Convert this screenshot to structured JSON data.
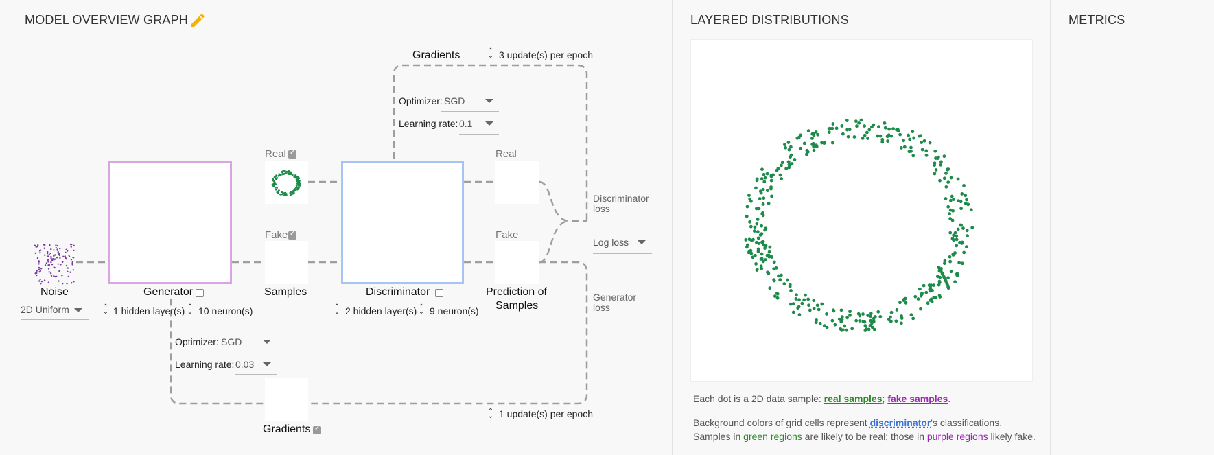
{
  "sections": {
    "model_overview": "MODEL OVERVIEW GRAPH",
    "layered": "LAYERED DISTRIBUTIONS",
    "metrics": "METRICS"
  },
  "accent": {
    "generator": "#d9a4e2",
    "discriminator": "#a8c4f5",
    "real_dot": "#1e8b4a",
    "fake_dot": "#7b3aa0",
    "edit_icon": "#f5b301"
  },
  "noise": {
    "label": "Noise",
    "distribution": "2D Uniform"
  },
  "generator": {
    "label": "Generator",
    "hidden_layers": "1 hidden layer(s)",
    "neurons": "10 neuron(s)",
    "optimizer_label": "Optimizer:",
    "optimizer": "SGD",
    "lr_label": "Learning rate:",
    "lr": "0.03"
  },
  "discriminator": {
    "label": "Discriminator",
    "hidden_layers": "2 hidden layer(s)",
    "neurons": "9 neuron(s)",
    "optimizer_label": "Optimizer:",
    "optimizer": "SGD",
    "lr_label": "Learning rate:",
    "lr": "0.1"
  },
  "real_in": "Real",
  "fake_in": "Fake",
  "samples": "Samples",
  "real_out": "Real",
  "fake_out": "Fake",
  "prediction": [
    "Prediction of",
    "Samples"
  ],
  "disc_loss": [
    "Discriminator",
    "loss"
  ],
  "gen_loss": [
    "Generator",
    "loss"
  ],
  "loss_fn": "Log loss",
  "gradients_top": "Gradients",
  "gradients_bottom": "Gradients",
  "updates_top": "3 update(s) per epoch",
  "updates_bottom": "1 update(s) per epoch",
  "caption": {
    "line1_pre": "Each dot is a 2D data sample: ",
    "real": "real samples",
    "sep": ";",
    "fake": "fake samples",
    "line1_post": ".",
    "line2_pre": "Background colors of grid cells represent ",
    "disc": "discriminator",
    "line2_post": "'s classifications.",
    "line3_a": "Samples in ",
    "green": "green regions",
    "line3_b": " are likely to be real; those in ",
    "purple": "purple regions",
    "line3_c": " likely fake."
  }
}
